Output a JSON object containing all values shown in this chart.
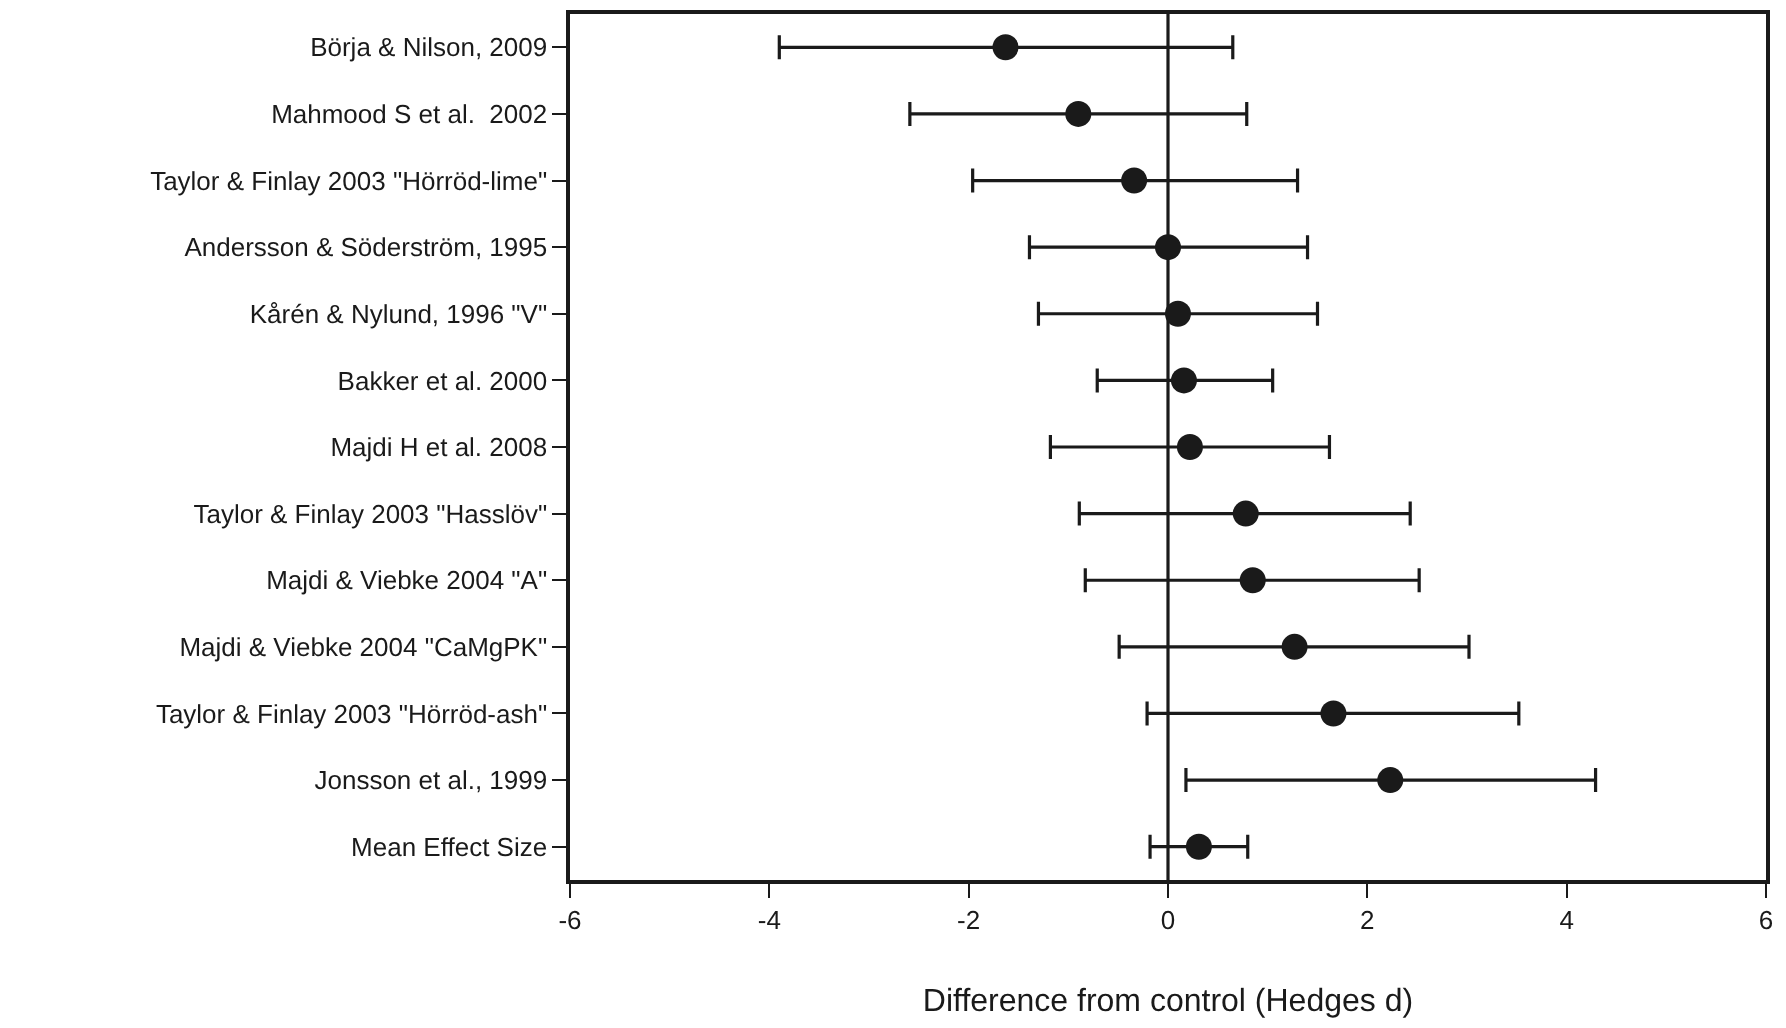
{
  "chart_data": {
    "type": "scatter",
    "orientation": "horizontal",
    "xlabel": "Difference from control (Hedges d)",
    "categories": [
      "Börja & Nilson, 2009",
      "Mahmood S et al.  2002",
      "Taylor & Finlay 2003 \"Hörröd-lime\"",
      "Andersson & Söderström, 1995",
      "Kårén & Nylund, 1996 \"V\"",
      "Bakker et al. 2000",
      "Majdi H et al. 2008",
      "Taylor & Finlay 2003 \"Hasslöv\"",
      "Majdi & Viebke 2004 \"A\"",
      "Majdi & Viebke 2004 \"CaMgPK\"",
      "Taylor & Finlay 2003 \"Hörröd-ash\"",
      "Jonsson et al., 1999",
      "Mean Effect Size"
    ],
    "series": [
      {
        "color": "#1a1a1a",
        "values": [
          -1.63,
          -0.9,
          -0.34,
          0.0,
          0.1,
          0.16,
          0.22,
          0.78,
          0.85,
          1.27,
          1.66,
          2.23,
          0.31
        ],
        "errors": [
          [
            -3.9,
            0.65
          ],
          [
            -2.59,
            0.79
          ],
          [
            -1.96,
            1.3
          ],
          [
            -1.39,
            1.4
          ],
          [
            -1.3,
            1.5
          ],
          [
            -0.71,
            1.05
          ],
          [
            -1.18,
            1.62
          ],
          [
            -0.89,
            2.43
          ],
          [
            -0.83,
            2.52
          ],
          [
            -0.49,
            3.02
          ],
          [
            -0.21,
            3.52
          ],
          [
            0.18,
            4.29
          ],
          [
            -0.18,
            0.8
          ]
        ]
      }
    ],
    "xlim": [
      -6,
      6
    ],
    "xticks": [
      -6,
      -4,
      -2,
      0,
      2,
      4,
      6
    ],
    "ref_lines": [
      {
        "axis": "x",
        "value": 0,
        "color": "#1a1a1a"
      }
    ],
    "marker": "circle",
    "grid": false
  }
}
